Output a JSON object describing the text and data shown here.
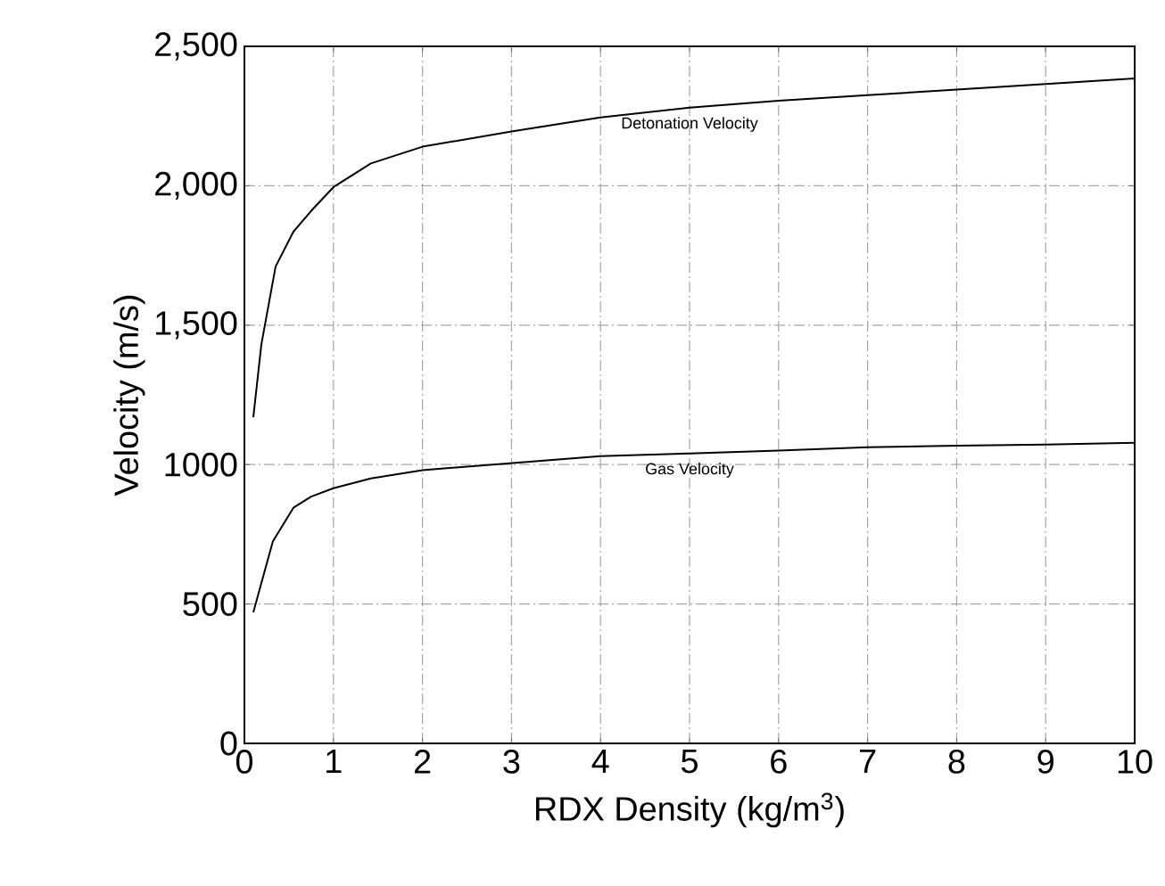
{
  "chart_data": {
    "type": "line",
    "xlabel": "RDX Density (kg/m$^{3}$)",
    "ylabel": "Velocity (m/s)",
    "xlim": [
      0,
      10
    ],
    "ylim": [
      0,
      2500
    ],
    "xticks": [
      0,
      1,
      2,
      3,
      4,
      5,
      6,
      7,
      8,
      9,
      10
    ],
    "yticks": [
      0,
      500,
      1000,
      {
        "value": 1500,
        "label": "1,500"
      },
      {
        "value": 2000,
        "label": "2,000"
      },
      {
        "value": 2500,
        "label": "2,500"
      }
    ],
    "grid": true,
    "legend": false,
    "marker": "none",
    "line_style": "solid",
    "series": [
      {
        "name": "Detonation Velocity",
        "color": "#000000",
        "x": [
          0.1,
          0.19,
          0.35,
          0.55,
          0.75,
          1.0,
          1.42,
          2,
          3,
          4,
          5,
          6,
          7,
          8,
          9,
          10
        ],
        "values": [
          1170,
          1430,
          1710,
          1835,
          1910,
          1995,
          2080,
          2140,
          2195,
          2245,
          2280,
          2305,
          2325,
          2345,
          2365,
          2385
        ]
      },
      {
        "name": "Gas Velocity",
        "color": "#000000",
        "x": [
          0.1,
          0.19,
          0.32,
          0.55,
          0.75,
          1.0,
          1.42,
          2,
          3,
          4,
          5,
          6,
          7,
          8,
          9,
          10
        ],
        "values": [
          470,
          575,
          725,
          845,
          885,
          915,
          950,
          980,
          1005,
          1030,
          1040,
          1050,
          1062,
          1068,
          1072,
          1078
        ]
      }
    ]
  }
}
